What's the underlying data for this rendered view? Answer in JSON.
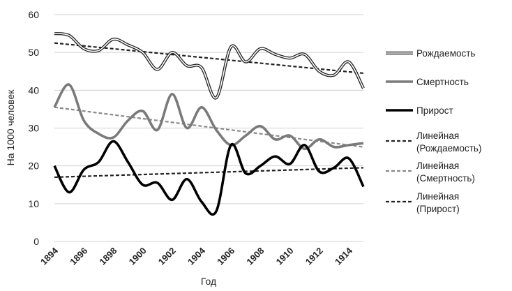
{
  "chart_data": {
    "type": "line",
    "xlabel": "Год",
    "ylabel": "На 1000 человек",
    "xlim": [
      1894,
      1915
    ],
    "ylim": [
      0,
      60
    ],
    "yticks": [
      0,
      10,
      20,
      30,
      40,
      50,
      60
    ],
    "xticks": [
      "1894",
      "1896",
      "1898",
      "1900",
      "1902",
      "1904",
      "1906",
      "1908",
      "1910",
      "1912",
      "1914"
    ],
    "grid": "horizontal",
    "legend_position": "right",
    "x": [
      1894,
      1895,
      1896,
      1897,
      1898,
      1899,
      1900,
      1901,
      1902,
      1903,
      1904,
      1905,
      1906,
      1907,
      1908,
      1909,
      1910,
      1911,
      1912,
      1913,
      1914,
      1915
    ],
    "series": [
      {
        "name": "Рождаемость",
        "style": "double",
        "color": "#222222",
        "values": [
          55,
          54.5,
          51,
          50.5,
          53.5,
          52,
          50,
          45.5,
          50,
          46.5,
          46,
          38,
          51.5,
          47.5,
          51,
          49.5,
          48.5,
          49.5,
          45,
          44,
          47.5,
          40.5
        ]
      },
      {
        "name": "Смертность",
        "style": "solid",
        "color": "#7a7a7a",
        "values": [
          35.5,
          41.5,
          32,
          28.5,
          27.5,
          32,
          34.5,
          29.5,
          39,
          30,
          35.5,
          29.5,
          25.5,
          28,
          30.5,
          27,
          28,
          24.5,
          27,
          25,
          25.5,
          26
        ]
      },
      {
        "name": "Прирост",
        "style": "solid",
        "color": "#000000",
        "values": [
          20,
          13,
          19,
          21,
          26.5,
          21,
          15,
          15.5,
          11,
          16.5,
          10.5,
          8,
          25.5,
          18,
          20,
          22.5,
          20.5,
          25.5,
          18.5,
          19.5,
          22,
          14.5
        ]
      }
    ],
    "trendlines": [
      {
        "name": "Линейная",
        "name_paren": "(Рождаемость)",
        "color": "#222222",
        "start": 52.5,
        "end": 44.5
      },
      {
        "name": "Линейная",
        "name_paren": "(Смертность)",
        "color": "#8a8a8a",
        "start": 35.5,
        "end": 25
      },
      {
        "name": "Линейная",
        "name_paren": "(Прирост)",
        "color": "#222222",
        "start": 17,
        "end": 19.5
      }
    ]
  }
}
